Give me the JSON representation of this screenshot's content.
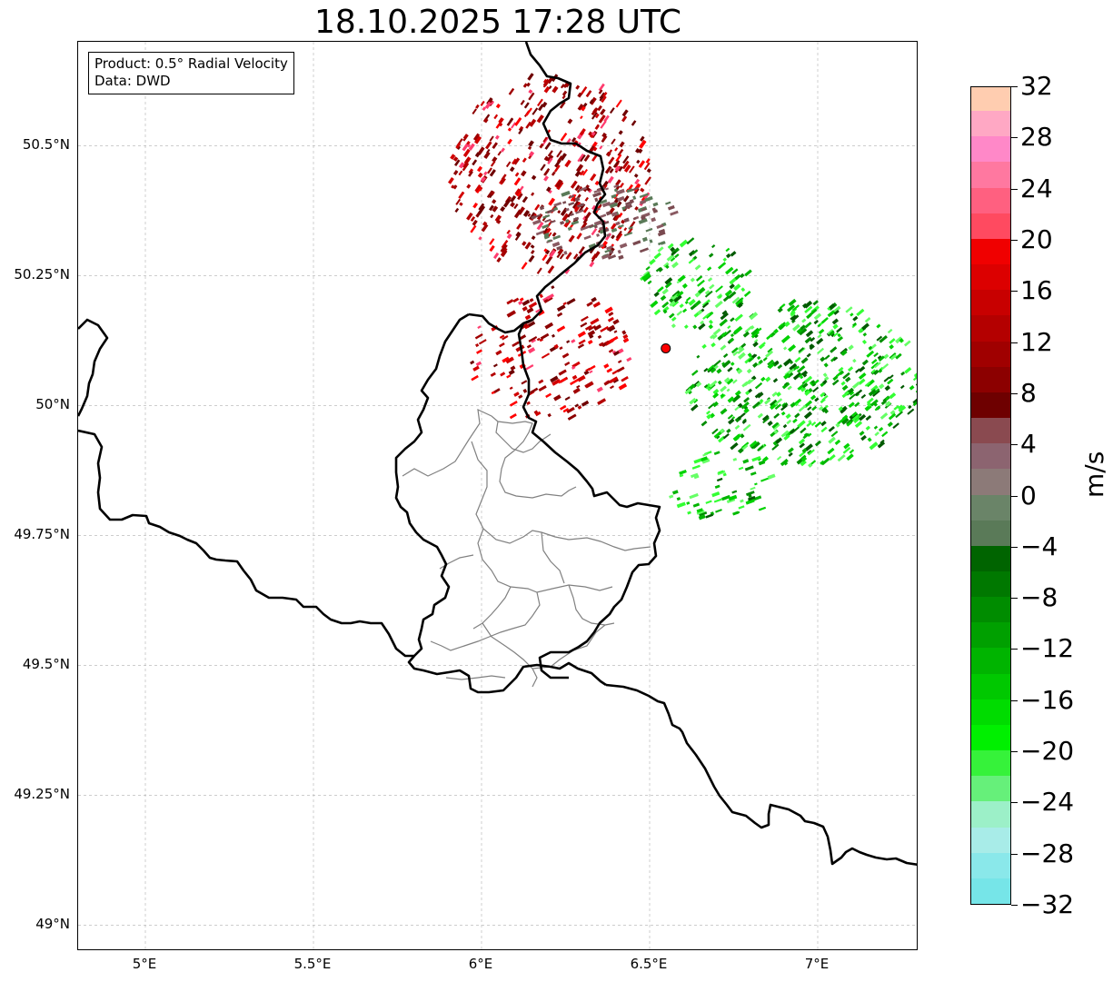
{
  "title": "18.10.2025 17:28 UTC",
  "info": {
    "product": "Product: 0.5° Radial Velocity",
    "data": "Data: DWD"
  },
  "map": {
    "extent": {
      "lon_min": 4.8,
      "lon_max": 7.3,
      "lat_min": 48.95,
      "lat_max": 50.7
    },
    "lat_ticks": [
      {
        "value": 50.5,
        "label": "50.5°N"
      },
      {
        "value": 50.25,
        "label": "50.25°N"
      },
      {
        "value": 50.0,
        "label": "50°N"
      },
      {
        "value": 49.75,
        "label": "49.75°N"
      },
      {
        "value": 49.5,
        "label": "49.5°N"
      },
      {
        "value": 49.25,
        "label": "49.25°N"
      },
      {
        "value": 49.0,
        "label": "49°N"
      }
    ],
    "lon_ticks": [
      {
        "value": 5.0,
        "label": "5°E"
      },
      {
        "value": 5.5,
        "label": "5.5°E"
      },
      {
        "value": 6.0,
        "label": "6°E"
      },
      {
        "value": 6.5,
        "label": "6.5°E"
      },
      {
        "value": 7.0,
        "label": "7°E"
      }
    ],
    "radar_site": {
      "lon": 6.548,
      "lat": 50.11,
      "color": "#ff0000"
    },
    "colors": {
      "border": "#000000",
      "admin": "#808080",
      "grid": "#b0b0b0",
      "approaching": [
        "#005a00",
        "#008c00",
        "#00b400",
        "#00d200",
        "#33ff33",
        "#66ff66"
      ],
      "receding": [
        "#6e0000",
        "#8c0000",
        "#a00000",
        "#b40000",
        "#d20000",
        "#ff0000",
        "#ff3c6e"
      ],
      "near_zero": [
        "#7a4a50",
        "#8a5a62",
        "#5a7a58"
      ]
    }
  },
  "colorbar": {
    "unit": "m/s",
    "min": -32,
    "max": 32,
    "colors": [
      "#76e5e8",
      "#8ae8ea",
      "#a8ece8",
      "#9cf0c8",
      "#66f07a",
      "#36f23a",
      "#00f000",
      "#00dc00",
      "#00c800",
      "#00b400",
      "#00a000",
      "#008c00",
      "#007800",
      "#006400",
      "#5a7a58",
      "#6a8468",
      "#8c7a78",
      "#8c6470",
      "#8a4a50",
      "#6e0000",
      "#8c0000",
      "#a00000",
      "#b40000",
      "#c80000",
      "#dc0000",
      "#f00000",
      "#ff4a60",
      "#ff6080",
      "#ff78a0",
      "#ff88c8",
      "#ffa8c4",
      "#ffcdb0"
    ],
    "ticks": [
      {
        "value": 32,
        "label": "32"
      },
      {
        "value": 28,
        "label": "28"
      },
      {
        "value": 24,
        "label": "24"
      },
      {
        "value": 20,
        "label": "20"
      },
      {
        "value": 16,
        "label": "16"
      },
      {
        "value": 12,
        "label": "12"
      },
      {
        "value": 8,
        "label": "8"
      },
      {
        "value": 4,
        "label": "4"
      },
      {
        "value": 0,
        "label": "0"
      },
      {
        "value": -4,
        "label": "−4"
      },
      {
        "value": -8,
        "label": "−8"
      },
      {
        "value": -12,
        "label": "−12"
      },
      {
        "value": -16,
        "label": "−16"
      },
      {
        "value": -20,
        "label": "−20"
      },
      {
        "value": -24,
        "label": "−24"
      },
      {
        "value": -28,
        "label": "−28"
      },
      {
        "value": -32,
        "label": "−32"
      }
    ]
  }
}
